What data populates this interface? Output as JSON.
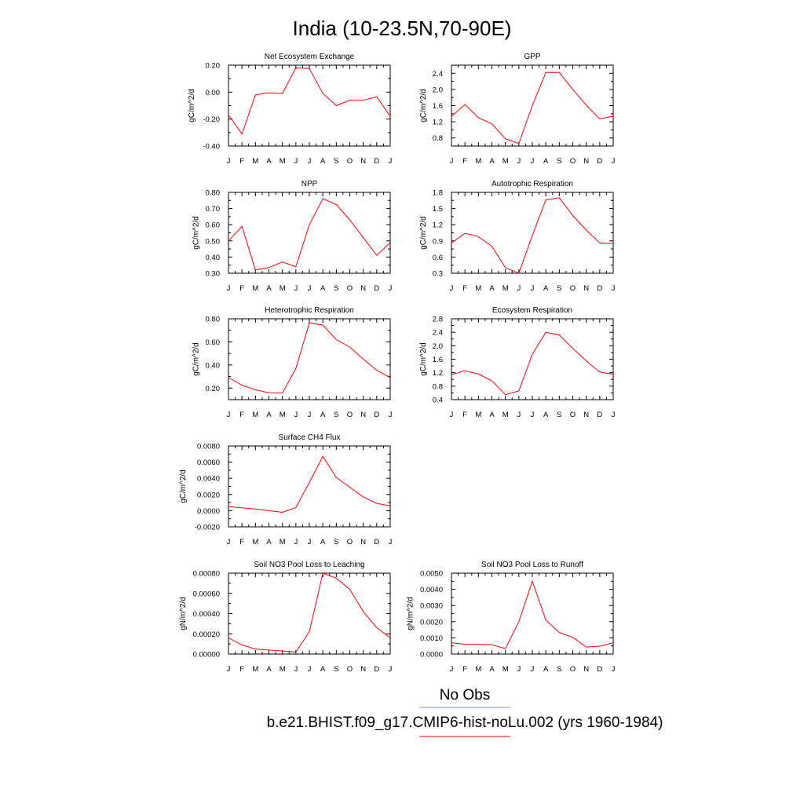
{
  "title": "India (10-23.5N,70-90E)",
  "months": [
    "J",
    "F",
    "M",
    "A",
    "M",
    "J",
    "J",
    "A",
    "S",
    "O",
    "N",
    "D",
    "J"
  ],
  "series_color": "#ff0000",
  "legend": [
    {
      "label": "No Obs",
      "color": "#8080ff"
    },
    {
      "label": "b.e21.BHIST.f09_g17.CMIP6-hist-noLu.002 (yrs 1960-1984)",
      "color": "#ff0000"
    }
  ],
  "chart_data": [
    {
      "type": "line",
      "title": "Net Ecosystem Exchange",
      "ylabel": "gC/m^2/d",
      "ylim": [
        -0.4,
        0.2
      ],
      "yticks": [
        -0.4,
        -0.2,
        0.0,
        0.2
      ],
      "ytick_labels": [
        "-0.40",
        "-0.20",
        "0.00",
        "0.20"
      ],
      "values": [
        -0.17,
        -0.31,
        -0.02,
        -0.005,
        -0.01,
        0.18,
        0.175,
        -0.01,
        -0.1,
        -0.06,
        -0.06,
        -0.035,
        -0.18
      ]
    },
    {
      "type": "line",
      "title": "GPP",
      "ylabel": "gC/m^2/d",
      "ylim": [
        0.6,
        2.6
      ],
      "yticks": [
        0.8,
        1.2,
        1.6,
        2.0,
        2.4
      ],
      "ytick_labels": [
        "0.8",
        "1.2",
        "1.6",
        "2.0",
        "2.4"
      ],
      "values": [
        1.33,
        1.63,
        1.3,
        1.15,
        0.78,
        0.66,
        1.6,
        2.42,
        2.42,
        2.0,
        1.61,
        1.27,
        1.34
      ]
    },
    {
      "type": "line",
      "title": "NPP",
      "ylabel": "gC/m^2/d",
      "ylim": [
        0.3,
        0.8
      ],
      "yticks": [
        0.3,
        0.4,
        0.5,
        0.6,
        0.7,
        0.8
      ],
      "ytick_labels": [
        "0.30",
        "0.40",
        "0.50",
        "0.60",
        "0.70",
        "0.80"
      ],
      "values": [
        0.5,
        0.59,
        0.32,
        0.335,
        0.37,
        0.34,
        0.6,
        0.76,
        0.725,
        0.63,
        0.52,
        0.41,
        0.49
      ]
    },
    {
      "type": "line",
      "title": "Autotrophic Respiration",
      "ylabel": "gC/m^2/d",
      "ylim": [
        0.3,
        1.8
      ],
      "yticks": [
        0.3,
        0.6,
        0.9,
        1.2,
        1.5,
        1.8
      ],
      "ytick_labels": [
        "0.3",
        "0.6",
        "0.9",
        "1.2",
        "1.5",
        "1.8"
      ],
      "values": [
        0.86,
        1.04,
        0.98,
        0.8,
        0.4,
        0.3,
        1.0,
        1.66,
        1.7,
        1.37,
        1.1,
        0.86,
        0.85
      ]
    },
    {
      "type": "line",
      "title": "Heterotrophic Respiration",
      "ylabel": "gC/m^2/d",
      "ylim": [
        0.1,
        0.8
      ],
      "yticks": [
        0.2,
        0.4,
        0.6,
        0.8
      ],
      "ytick_labels": [
        "0.20",
        "0.40",
        "0.60",
        "0.80"
      ],
      "values": [
        0.29,
        0.225,
        0.185,
        0.16,
        0.158,
        0.37,
        0.765,
        0.745,
        0.62,
        0.555,
        0.45,
        0.355,
        0.29
      ]
    },
    {
      "type": "line",
      "title": "Ecosystem Respiration",
      "ylabel": "gC/m^2/d",
      "ylim": [
        0.4,
        2.8
      ],
      "yticks": [
        0.4,
        0.8,
        1.2,
        1.6,
        2.0,
        2.4,
        2.8
      ],
      "ytick_labels": [
        "0.4",
        "0.8",
        "1.2",
        "1.6",
        "2.0",
        "2.4",
        "2.8"
      ],
      "values": [
        1.14,
        1.26,
        1.16,
        0.96,
        0.55,
        0.66,
        1.75,
        2.4,
        2.32,
        1.92,
        1.55,
        1.22,
        1.15
      ]
    },
    {
      "type": "line",
      "title": "Surface CH4 Flux",
      "ylabel": "gC/m^2/d",
      "ylim": [
        -0.002,
        0.008
      ],
      "yticks": [
        -0.002,
        0.0,
        0.002,
        0.004,
        0.006,
        0.008
      ],
      "ytick_labels": [
        "-0.0020",
        "0.0000",
        "0.0020",
        "0.0040",
        "0.0060",
        "0.0080"
      ],
      "values": [
        0.0005,
        0.00035,
        0.0002,
        0.0,
        -0.0002,
        0.0004,
        0.0035,
        0.0067,
        0.0041,
        0.0029,
        0.0017,
        0.0009,
        0.0006
      ]
    },
    {
      "type": "line",
      "title": "Soil NO3 Pool Loss to Leaching",
      "ylabel": "gN/m^2/d",
      "ylim": [
        0.0,
        0.0008
      ],
      "yticks": [
        0.0,
        0.0002,
        0.0004,
        0.0006,
        0.0008
      ],
      "ytick_labels": [
        "0.00000",
        "0.00020",
        "0.00040",
        "0.00060",
        "0.00080"
      ],
      "values": [
        0.00016,
        9e-05,
        5e-05,
        4e-05,
        3e-05,
        2e-05,
        0.00022,
        0.0008,
        0.00075,
        0.00064,
        0.00042,
        0.00026,
        0.00016
      ]
    },
    {
      "type": "line",
      "title": "Soil NO3 Pool Loss to Runoff",
      "ylabel": "gN/m^2/d",
      "ylim": [
        0.0,
        0.005
      ],
      "yticks": [
        0.0,
        0.001,
        0.002,
        0.003,
        0.004,
        0.005
      ],
      "ytick_labels": [
        "0.0000",
        "0.0010",
        "0.0020",
        "0.0030",
        "0.0040",
        "0.0050"
      ],
      "values": [
        0.0007,
        0.0006,
        0.0006,
        0.00058,
        0.00033,
        0.002,
        0.0045,
        0.0021,
        0.00133,
        0.00103,
        0.00043,
        0.00048,
        0.0007
      ]
    }
  ]
}
